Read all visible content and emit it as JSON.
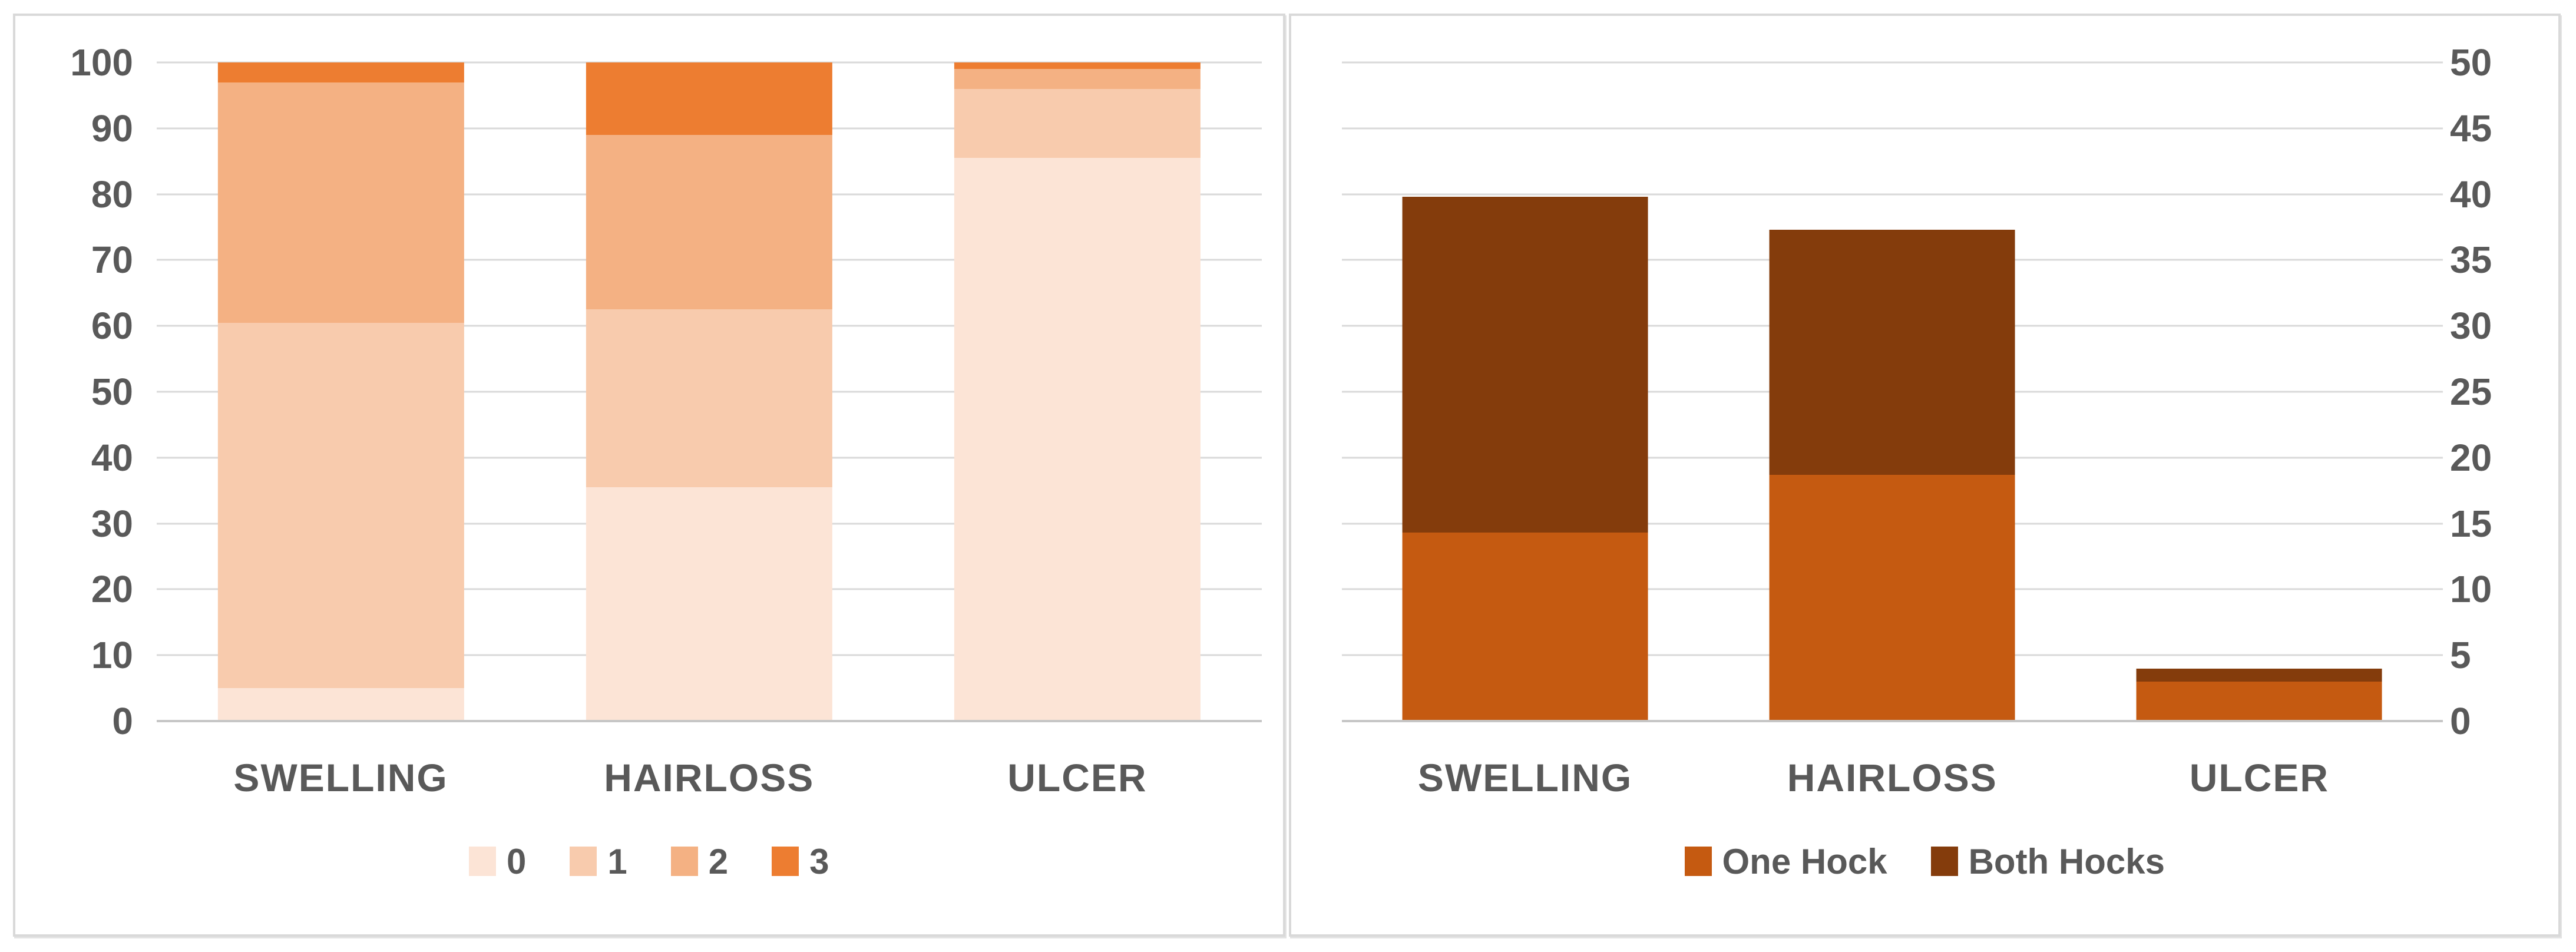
{
  "colors": {
    "panel_border": "#d9d9d9",
    "gridline": "#d9d9d9",
    "axis_line": "#c6c6c6",
    "text": "#595959",
    "background": "#ffffff"
  },
  "chart_data": [
    {
      "type": "bar",
      "stacked": true,
      "title": "",
      "categories": [
        "SWELLING",
        "HAIRLOSS",
        "ULCER"
      ],
      "series": [
        {
          "name": "0",
          "color": "#fce4d6",
          "values": [
            5,
            35.5,
            85.5
          ]
        },
        {
          "name": "1",
          "color": "#f8cbad",
          "values": [
            55.5,
            27,
            10.5
          ]
        },
        {
          "name": "2",
          "color": "#f4b183",
          "values": [
            36.5,
            26.5,
            3
          ]
        },
        {
          "name": "3",
          "color": "#ed7d31",
          "values": [
            3,
            11,
            1
          ]
        }
      ],
      "xlabel": "",
      "ylabel": "",
      "ylim": [
        0,
        100
      ],
      "ytick_step": 10,
      "yaxis_side": "left",
      "grid": true,
      "legend_position": "bottom"
    },
    {
      "type": "bar",
      "stacked": true,
      "title": "",
      "categories": [
        "SWELLING",
        "HAIRLOSS",
        "ULCER"
      ],
      "series": [
        {
          "name": "One Hock",
          "color": "#c55a11",
          "values": [
            14.3,
            18.7,
            3
          ]
        },
        {
          "name": "Both Hocks",
          "color": "#843c0c",
          "values": [
            25.5,
            18.6,
            1
          ]
        }
      ],
      "xlabel": "",
      "ylabel": "",
      "ylim": [
        0,
        50
      ],
      "ytick_step": 5,
      "yaxis_side": "right",
      "grid": true,
      "legend_position": "bottom"
    }
  ]
}
